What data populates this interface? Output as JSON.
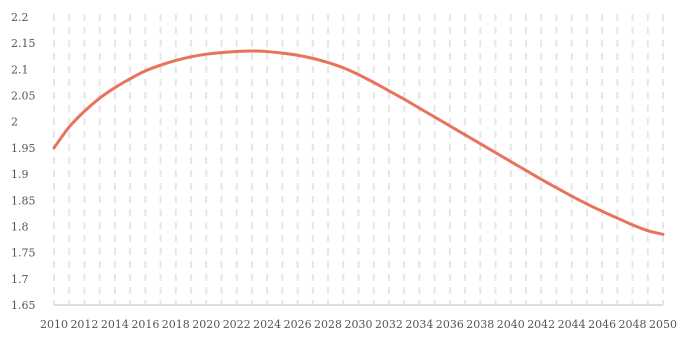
{
  "chart_data": {
    "type": "line",
    "title": "",
    "xlabel": "",
    "ylabel": "",
    "xlim": [
      2010,
      2050
    ],
    "ylim": [
      1.65,
      2.2
    ],
    "grid": {
      "vertical": "dashed",
      "horizontal": "none",
      "minor_vertical_every_year": true
    },
    "legend": "none",
    "line_color": "#e8735a",
    "grid_color": "#e6e6e6",
    "x_ticks": [
      "2010",
      "2012",
      "2014",
      "2016",
      "2018",
      "2020",
      "2022",
      "2024",
      "2026",
      "2028",
      "2030",
      "2032",
      "2034",
      "2036",
      "2038",
      "2040",
      "2042",
      "2044",
      "2046",
      "2048",
      "2050"
    ],
    "y_ticks": [
      "1.65",
      "1.7",
      "1.75",
      "1.8",
      "1.85",
      "1.9",
      "1.95",
      "2",
      "2.05",
      "2.1",
      "2.15",
      "2.2"
    ],
    "series": [
      {
        "x": [
          2010,
          2011,
          2012,
          2013,
          2014,
          2015,
          2016,
          2017,
          2018,
          2019,
          2020,
          2021,
          2022,
          2023,
          2024,
          2025,
          2026,
          2027,
          2028,
          2029,
          2030,
          2031,
          2032,
          2033,
          2034,
          2035,
          2036,
          2037,
          2038,
          2039,
          2040,
          2041,
          2042,
          2043,
          2044,
          2045,
          2046,
          2047,
          2048,
          2049,
          2050
        ],
        "values": [
          1.95,
          1.99,
          2.02,
          2.045,
          2.065,
          2.082,
          2.097,
          2.108,
          2.117,
          2.124,
          2.129,
          2.132,
          2.134,
          2.135,
          2.134,
          2.131,
          2.127,
          2.121,
          2.113,
          2.103,
          2.09,
          2.075,
          2.059,
          2.043,
          2.026,
          2.009,
          1.992,
          1.975,
          1.958,
          1.941,
          1.924,
          1.907,
          1.89,
          1.874,
          1.858,
          1.843,
          1.829,
          1.816,
          1.803,
          1.792,
          1.785
        ]
      }
    ]
  }
}
